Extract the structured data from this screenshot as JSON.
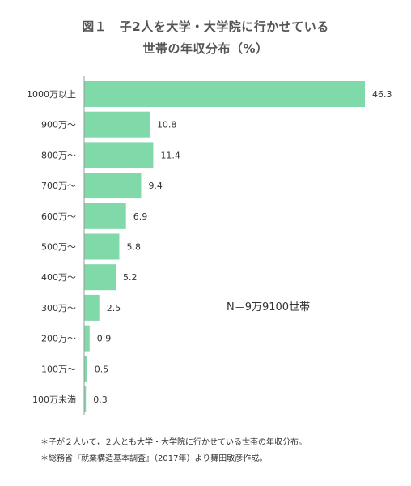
{
  "title_line1": "図１　子2人を大学・大学院に行かせている",
  "title_line2": "世帯の年収分布（%）",
  "chart_data": {
    "type": "bar",
    "orientation": "horizontal",
    "title": "図１　子2人を大学・大学院に行かせている世帯の年収分布（%）",
    "categories": [
      "1000万以上",
      "900万～",
      "800万～",
      "700万～",
      "600万～",
      "500万～",
      "400万～",
      "300万～",
      "200万～",
      "100万～",
      "100万未満"
    ],
    "values": [
      46.3,
      10.8,
      11.4,
      9.4,
      6.9,
      5.8,
      5.2,
      2.5,
      0.9,
      0.5,
      0.3
    ],
    "value_labels": [
      "46.3",
      "10.8",
      "11.4",
      "9.4",
      "6.9",
      "5.8",
      "5.2",
      "2.5",
      "0.9",
      "0.5",
      "0.3"
    ],
    "xlim": [
      0,
      46.3
    ],
    "bar_color": "#7fd9a8",
    "grid": false,
    "legend": "none",
    "annotation": "N＝9万9100世帯"
  },
  "notes": [
    "＊子が２人いて，２人とも大学・大学院に行かせている世帯の年収分布。",
    "＊総務省『就業構造基本調査』（2017年）より舞田敏彦作成。"
  ]
}
